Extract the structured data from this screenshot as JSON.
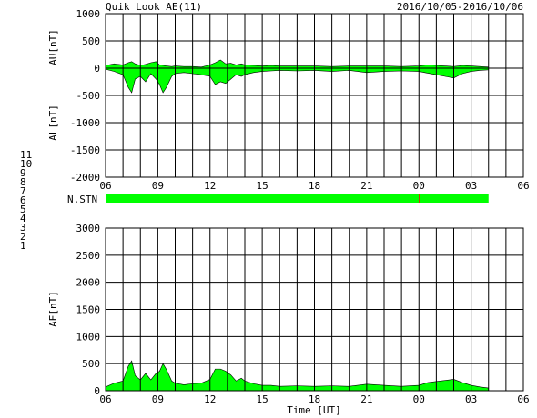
{
  "header": {
    "title": "Quik Look AE(11)",
    "date_range": "2016/10/05-2016/10/06"
  },
  "colors": {
    "fill": "#00ff00",
    "grid": "#000000",
    "station_fault": "#ff0000"
  },
  "station_legend": [
    {
      "label": "11",
      "color": "#00e0e0"
    },
    {
      "label": "10",
      "color": "#ff00ff"
    },
    {
      "label": "9",
      "color": "#0000cc"
    },
    {
      "label": "8",
      "color": "#e0e000"
    },
    {
      "label": "7",
      "color": "#c8c800"
    },
    {
      "label": "6",
      "color": "#ff0000"
    },
    {
      "label": "5",
      "color": "#b0b0b0"
    },
    {
      "label": "4",
      "color": "#909090"
    },
    {
      "label": "3",
      "color": "#00a0a0"
    },
    {
      "label": "2",
      "color": "#cc00cc"
    },
    {
      "label": "1",
      "color": "#0000cc"
    }
  ],
  "station_bar": {
    "label": "N.STN",
    "x_start": 0,
    "x_end": 22,
    "fault_at": 18
  },
  "x_tick_labels": [
    "06",
    "09",
    "12",
    "15",
    "18",
    "21",
    "00",
    "03",
    "06"
  ],
  "xlabel": "Time [UT]",
  "chart_data": [
    {
      "type": "area",
      "name": "AU-AL",
      "ylabel_upper": "AU[nT]",
      "ylabel_lower": "AL[nT]",
      "xlim": [
        0,
        24
      ],
      "ylim": [
        -2000,
        1000
      ],
      "y_ticks": [
        1000,
        500,
        0,
        -500,
        -1000,
        -1500,
        -2000
      ],
      "x_ticks": [
        0,
        3,
        6,
        9,
        12,
        15,
        18,
        21,
        24
      ],
      "x": [
        0,
        0.5,
        1,
        1.3,
        1.5,
        1.7,
        2,
        2.3,
        2.6,
        2.9,
        3.1,
        3.3,
        3.5,
        3.8,
        4,
        4.5,
        5,
        5.5,
        6,
        6.3,
        6.6,
        6.9,
        7.2,
        7.5,
        7.8,
        8,
        8.5,
        9,
        9.5,
        10,
        11,
        12,
        13,
        14,
        15,
        16,
        17,
        18,
        18.5,
        19,
        19.5,
        20,
        20.5,
        21,
        21.5,
        22
      ],
      "au": [
        50,
        80,
        60,
        100,
        120,
        80,
        50,
        70,
        100,
        120,
        60,
        50,
        40,
        30,
        40,
        30,
        30,
        20,
        60,
        100,
        150,
        80,
        90,
        60,
        80,
        60,
        50,
        40,
        50,
        40,
        40,
        40,
        30,
        40,
        40,
        40,
        30,
        40,
        60,
        50,
        40,
        30,
        50,
        40,
        30,
        20
      ],
      "al": [
        -20,
        -60,
        -120,
        -350,
        -450,
        -200,
        -150,
        -250,
        -100,
        -200,
        -300,
        -450,
        -350,
        -150,
        -100,
        -80,
        -100,
        -120,
        -150,
        -300,
        -250,
        -280,
        -200,
        -120,
        -150,
        -120,
        -80,
        -60,
        -50,
        -40,
        -50,
        -40,
        -60,
        -40,
        -80,
        -60,
        -50,
        -60,
        -90,
        -120,
        -150,
        -180,
        -100,
        -60,
        -40,
        -30
      ]
    },
    {
      "type": "area",
      "name": "AE",
      "ylabel": "AE[nT]",
      "xlim": [
        0,
        24
      ],
      "ylim": [
        0,
        3000
      ],
      "y_ticks": [
        3000,
        2500,
        2000,
        1500,
        1000,
        500,
        0
      ],
      "x_ticks": [
        0,
        3,
        6,
        9,
        12,
        15,
        18,
        21,
        24
      ],
      "x": [
        0,
        0.5,
        1,
        1.3,
        1.5,
        1.7,
        2,
        2.3,
        2.6,
        2.9,
        3.1,
        3.3,
        3.5,
        3.8,
        4,
        4.5,
        5,
        5.5,
        6,
        6.3,
        6.6,
        6.9,
        7.2,
        7.5,
        7.8,
        8,
        8.5,
        9,
        9.5,
        10,
        11,
        12,
        13,
        14,
        15,
        16,
        17,
        18,
        18.5,
        19,
        19.5,
        20,
        20.5,
        21,
        21.5,
        22
      ],
      "values": [
        70,
        140,
        180,
        450,
        550,
        280,
        200,
        320,
        200,
        320,
        360,
        500,
        390,
        180,
        140,
        110,
        130,
        140,
        210,
        400,
        400,
        360,
        290,
        180,
        230,
        180,
        130,
        100,
        100,
        80,
        90,
        80,
        90,
        80,
        120,
        100,
        80,
        100,
        150,
        170,
        190,
        210,
        150,
        100,
        70,
        50
      ]
    }
  ]
}
